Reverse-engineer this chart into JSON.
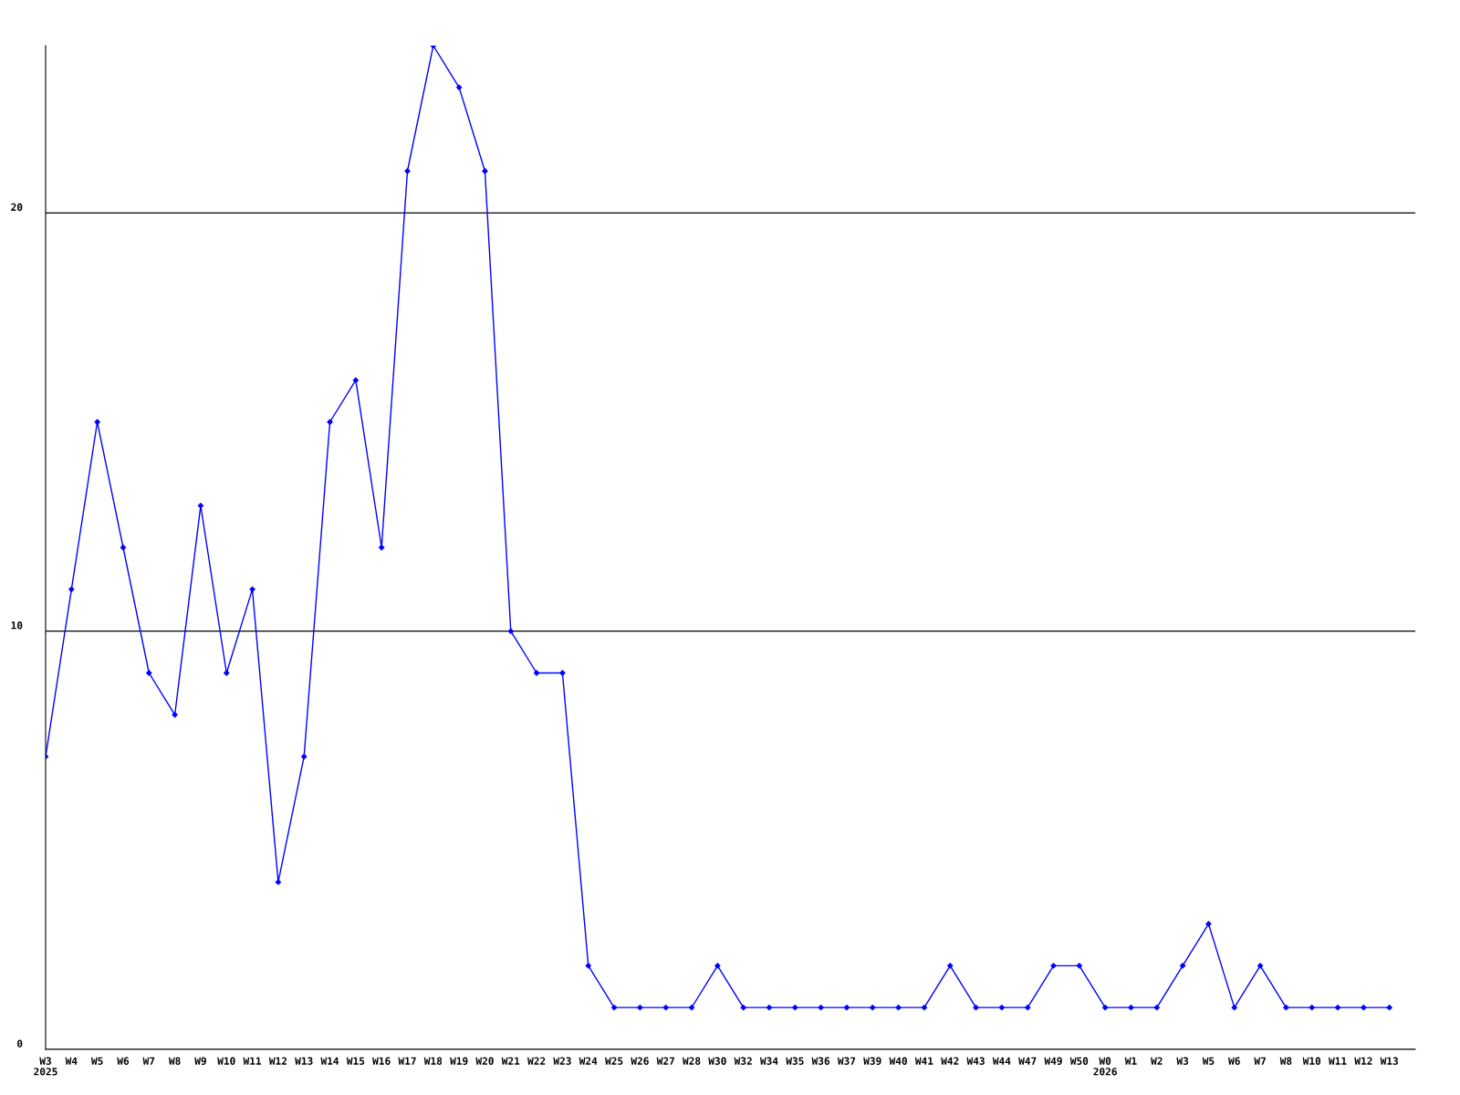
{
  "chart_data": {
    "type": "line",
    "categories": [
      "W3\n2025",
      "W4",
      "W5",
      "W6",
      "W7",
      "W8",
      "W9",
      "W10",
      "W11",
      "W12",
      "W13",
      "W14",
      "W15",
      "W16",
      "W17",
      "W18",
      "W19",
      "W20",
      "W21",
      "W22",
      "W23",
      "W24",
      "W25",
      "W26",
      "W27",
      "W28",
      "W30",
      "W32",
      "W34",
      "W35",
      "W36",
      "W37",
      "W39",
      "W40",
      "W41",
      "W42",
      "W43",
      "W44",
      "W47",
      "W49",
      "W50",
      "W0\n2026",
      "W1",
      "W2",
      "W3",
      "W5",
      "W6",
      "W7",
      "W8",
      "W10",
      "W11",
      "W12",
      "W13"
    ],
    "series": [
      {
        "color": "#0000ff",
        "values": [
          7,
          11,
          15,
          12,
          9,
          8,
          13,
          9,
          11,
          4,
          7,
          15,
          16,
          12,
          21,
          24,
          23,
          21,
          10,
          9,
          9,
          2,
          1,
          1,
          1,
          1,
          2,
          1,
          1,
          1,
          1,
          1,
          1,
          1,
          1,
          2,
          1,
          1,
          1,
          2,
          2,
          1,
          1,
          1,
          2,
          3,
          1,
          2,
          1,
          1,
          1,
          1,
          1
        ]
      }
    ],
    "ylim": [
      0,
      24
    ],
    "yticks": [
      0,
      10,
      20
    ],
    "grid": "y",
    "marker": "diamond",
    "line_style": "solid"
  }
}
